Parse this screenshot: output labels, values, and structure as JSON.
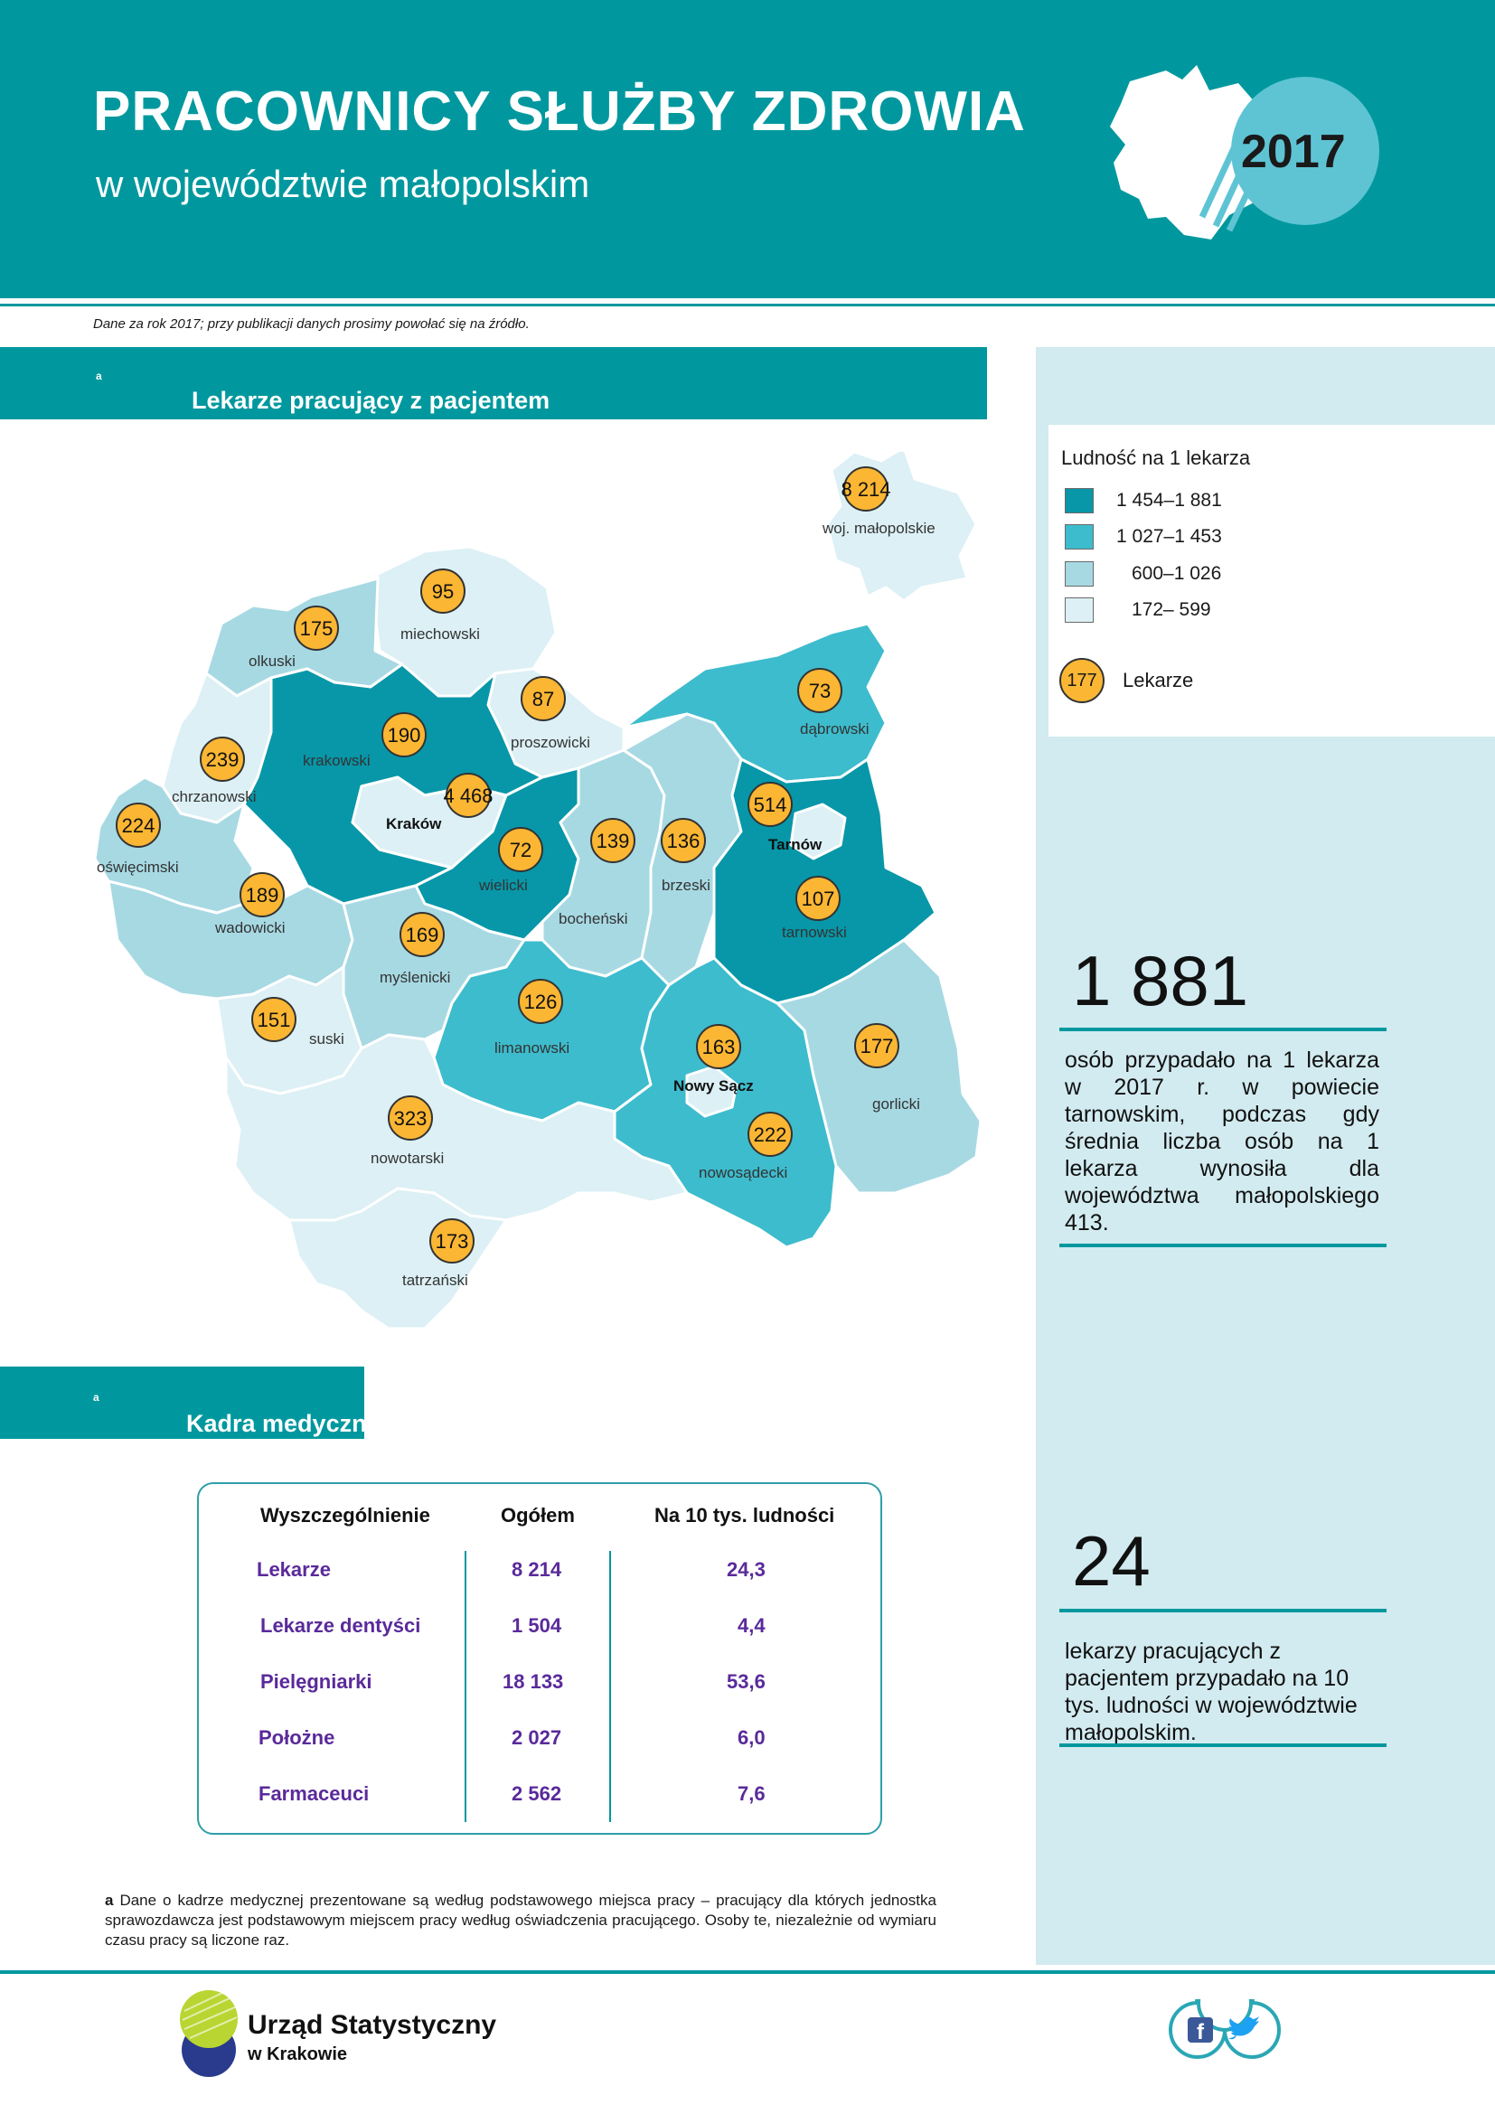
{
  "header": {
    "title": "PRACOWNICY SŁUŻBY ZDROWIA",
    "subtitle": "w województwie małopolskim",
    "year": "2017"
  },
  "note": "Dane za rok 2017; przy publikacji danych prosimy powołać się na źródło.",
  "section1": {
    "title": "Lekarze pracujący z pacjentem",
    "sup": "a"
  },
  "section2": {
    "title": "Kadra medyczna",
    "sup": "a"
  },
  "legend": {
    "title": "Ludność na 1 lekarza",
    "classes": [
      {
        "label": "1 454–1 881",
        "color": "#0797a8"
      },
      {
        "label": "1 027–1 453",
        "color": "#3dbccd"
      },
      {
        "label": "600–1 026",
        "color": "#a7d9e3"
      },
      {
        "label": "172– 599",
        "color": "#dcf0f5"
      }
    ],
    "circle_value": "177",
    "circle_label": "Lekarze"
  },
  "map": {
    "voivodeship": {
      "value": "8 214",
      "label": "woj. małopolskie"
    },
    "districts": [
      {
        "name": "miechowski",
        "value": "95",
        "class": 3
      },
      {
        "name": "olkuski",
        "value": "175",
        "class": 2
      },
      {
        "name": "proszowicki",
        "value": "87",
        "class": 3
      },
      {
        "name": "dąbrowski",
        "value": "73",
        "class": 2
      },
      {
        "name": "krakowski",
        "value": "190",
        "class": 1
      },
      {
        "name": "chrzanowski",
        "value": "239",
        "class": 3
      },
      {
        "name": "Kraków",
        "value": "4 468",
        "class": 3,
        "city": true
      },
      {
        "name": "oświęcimski",
        "value": "224",
        "class": 2
      },
      {
        "name": "wielicki",
        "value": "72",
        "class": 0
      },
      {
        "name": "bocheński",
        "value": "139",
        "class": 2
      },
      {
        "name": "brzeski",
        "value": "136",
        "class": 2
      },
      {
        "name": "Tarnów",
        "value": "514",
        "class": 3,
        "city": true
      },
      {
        "name": "tarnowski",
        "value": "107",
        "class": 0
      },
      {
        "name": "wadowicki",
        "value": "189",
        "class": 2
      },
      {
        "name": "myślenicki",
        "value": "169",
        "class": 2
      },
      {
        "name": "suski",
        "value": "151",
        "class": 3
      },
      {
        "name": "limanowski",
        "value": "126",
        "class": 1
      },
      {
        "name": "Nowy Sącz",
        "value": "163",
        "class": 3,
        "city": true
      },
      {
        "name": "nowosądecki",
        "value": "222",
        "class": 1
      },
      {
        "name": "gorlicki",
        "value": "177",
        "class": 2
      },
      {
        "name": "nowotarski",
        "value": "323",
        "class": 3
      },
      {
        "name": "tatrzański",
        "value": "173",
        "class": 3
      }
    ]
  },
  "stat1": {
    "number": "1 881",
    "text": "osób przypadało na 1 lekarza w 2017 r. w powiecie tarnowskim, podczas gdy średnia liczba osób na 1 lekarza wynosiła dla województwa małopolskiego 413."
  },
  "stat2": {
    "number": "24",
    "text": "lekarzy pracujących z pacjentem przypadało na 10 tys. ludności w województwie małopolskim."
  },
  "table": {
    "headers": [
      "Wyszczególnienie",
      "Ogółem",
      "Na 10 tys. ludności"
    ],
    "rows": [
      [
        "Lekarze",
        "8 214",
        "24,3"
      ],
      [
        "Lekarze dentyści",
        "1 504",
        "4,4"
      ],
      [
        "Pielęgniarki",
        "18 133",
        "53,6"
      ],
      [
        "Położne",
        "2 027",
        "6,0"
      ],
      [
        "Farmaceuci",
        "2 562",
        "7,6"
      ]
    ]
  },
  "footnote": {
    "marker": "a",
    "text": "Dane o kadrze medycznej prezentowane są według podstawowego miejsca pracy – pracujący dla których jednostka sprawozdawcza jest podstawowym miejscem pracy według oświadczenia pracującego. Osoby te, niezależnie od wymiaru czasu pracy są liczone raz."
  },
  "logo": {
    "name": "Urząd Statystyczny",
    "sub": "w Krakowie"
  },
  "social": {
    "facebook": "facebook-icon",
    "twitter": "twitter-icon"
  }
}
